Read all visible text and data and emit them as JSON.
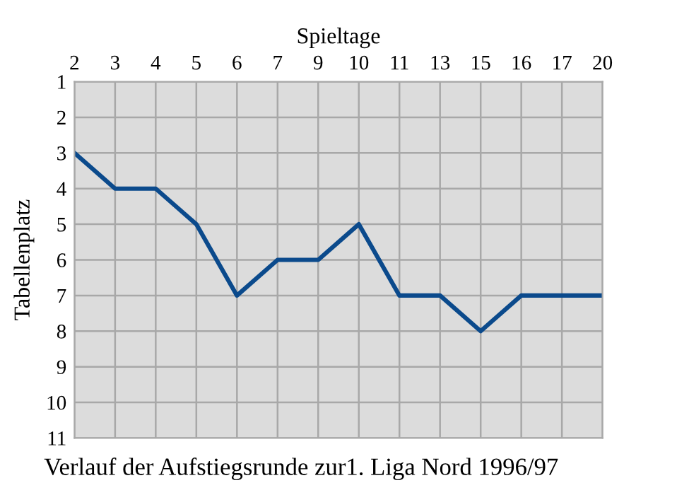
{
  "chart_data": {
    "type": "line",
    "xlabel": "Spieltage",
    "ylabel": "Tabellenplatz",
    "categories": [
      "2",
      "3",
      "4",
      "5",
      "6",
      "7",
      "9",
      "10",
      "11",
      "13",
      "15",
      "16",
      "17",
      "20"
    ],
    "series": [
      {
        "color": "#0b4a8c",
        "values": [
          3,
          4,
          4,
          5,
          7,
          6,
          6,
          5,
          7,
          7,
          8,
          7,
          7,
          7
        ]
      }
    ],
    "ylim": [
      11,
      1
    ],
    "yticks": [
      1,
      2,
      3,
      4,
      5,
      6,
      7,
      8,
      9,
      10,
      11
    ],
    "grid": true,
    "marker": "none",
    "line_style": "solid",
    "annotations": [
      "Verlauf der Aufstiegsrunde zur1. Liga Nord 1996/97"
    ]
  }
}
